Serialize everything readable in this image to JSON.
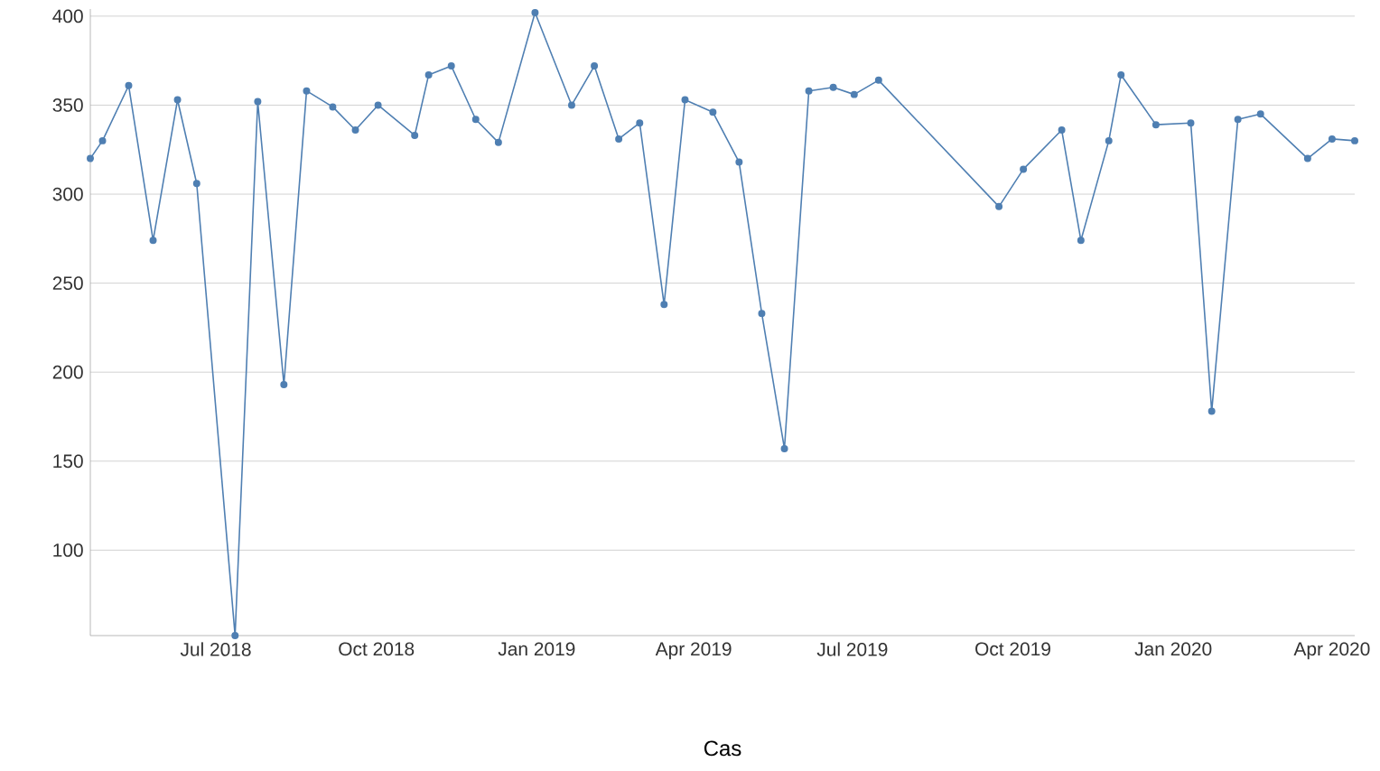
{
  "chart_data": {
    "type": "line",
    "xlabel": "Cas",
    "color": "#4f7fb2",
    "marker": "circle",
    "grid": "y",
    "x": [
      "2018-04-20",
      "2018-04-27",
      "2018-05-12",
      "2018-05-26",
      "2018-06-09",
      "2018-06-20",
      "2018-07-12",
      "2018-07-25",
      "2018-08-09",
      "2018-08-22",
      "2018-09-06",
      "2018-09-19",
      "2018-10-02",
      "2018-10-23",
      "2018-10-31",
      "2018-11-13",
      "2018-11-27",
      "2018-12-10",
      "2018-12-31",
      "2019-01-21",
      "2019-02-03",
      "2019-02-17",
      "2019-03-01",
      "2019-03-15",
      "2019-03-27",
      "2019-04-12",
      "2019-04-27",
      "2019-05-10",
      "2019-05-23",
      "2019-06-06",
      "2019-06-20",
      "2019-07-02",
      "2019-07-16",
      "2019-09-23",
      "2019-10-07",
      "2019-10-29",
      "2019-11-09",
      "2019-11-25",
      "2019-12-02",
      "2019-12-22",
      "2020-01-11",
      "2020-01-23",
      "2020-02-07",
      "2020-02-20",
      "2020-03-18",
      "2020-04-01",
      "2020-04-14"
    ],
    "values": [
      320,
      330,
      361,
      274,
      353,
      306,
      52,
      352,
      193,
      358,
      349,
      336,
      350,
      333,
      367,
      372,
      342,
      329,
      402,
      350,
      372,
      331,
      340,
      238,
      353,
      346,
      318,
      233,
      157,
      358,
      360,
      356,
      364,
      293,
      314,
      336,
      274,
      330,
      367,
      339,
      340,
      178,
      342,
      345,
      320,
      331,
      330
    ],
    "xlim": [
      "2018-04-20",
      "2020-04-14"
    ],
    "xticks": [
      {
        "value": "2018-07-01",
        "label": "Jul 2018"
      },
      {
        "value": "2018-10-01",
        "label": "Oct 2018"
      },
      {
        "value": "2019-01-01",
        "label": "Jan 2019"
      },
      {
        "value": "2019-04-01",
        "label": "Apr 2019"
      },
      {
        "value": "2019-07-01",
        "label": "Jul 2019"
      },
      {
        "value": "2019-10-01",
        "label": "Oct 2019"
      },
      {
        "value": "2020-01-01",
        "label": "Jan 2020"
      },
      {
        "value": "2020-04-01",
        "label": "Apr 2020"
      }
    ],
    "ylim": [
      52,
      404
    ],
    "yticks": [
      100,
      150,
      200,
      250,
      300,
      350,
      400
    ]
  }
}
